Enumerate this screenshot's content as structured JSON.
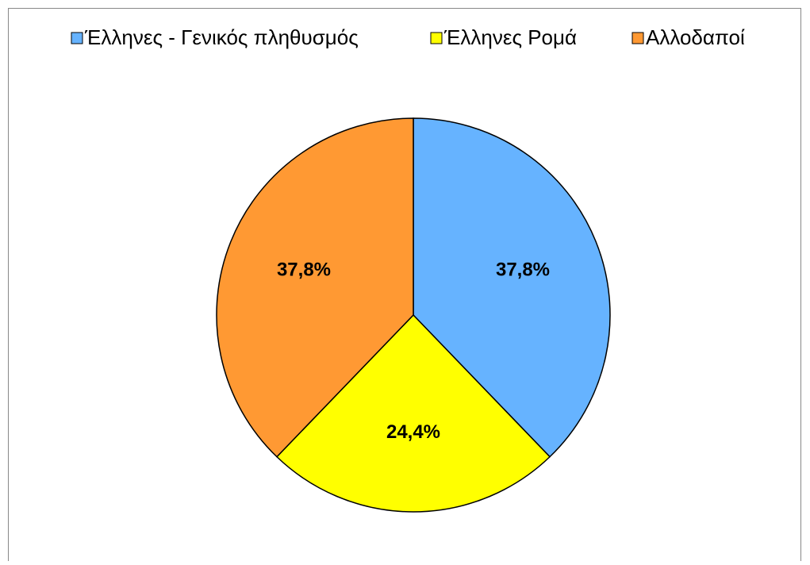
{
  "chart_data": {
    "type": "pie",
    "categories": [
      "Έλληνες - Γενικός πληθυσμός",
      "Έλληνες Ρομά",
      "Αλλοδαποί"
    ],
    "values": [
      37.8,
      24.4,
      37.8
    ],
    "value_labels": [
      "37,8%",
      "24,4%",
      "37,8%"
    ],
    "colors": [
      "#66b3ff",
      "#ffff00",
      "#ff9933"
    ],
    "legend": "top"
  }
}
